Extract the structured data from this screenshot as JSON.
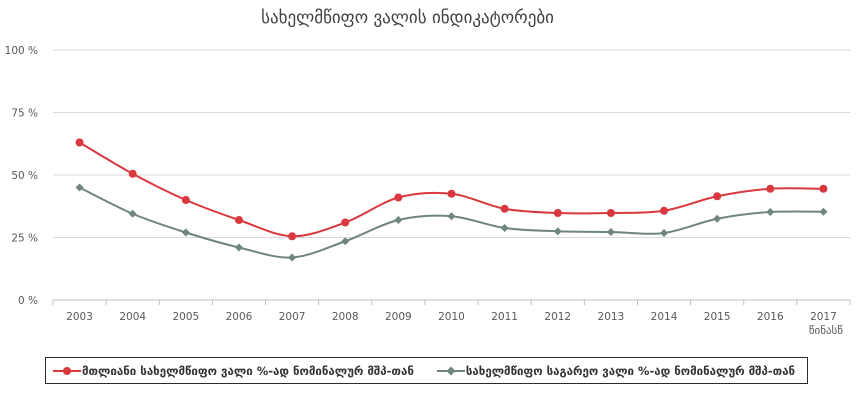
{
  "chart_data": {
    "type": "line",
    "title": "სახელმწიფო ვალის ინდიკატორები",
    "xlabel": "წინასწ",
    "ylabel": "",
    "categories": [
      "2003",
      "2004",
      "2005",
      "2006",
      "2007",
      "2008",
      "2009",
      "2010",
      "2011",
      "2012",
      "2013",
      "2014",
      "2015",
      "2016",
      "2017"
    ],
    "ylim": [
      0,
      100
    ],
    "yticks": [
      0,
      25,
      50,
      75,
      100
    ],
    "ytick_labels": [
      "0 %",
      "25 %",
      "50 %",
      "75 %",
      "100 %"
    ],
    "grid": true,
    "legend_position": "bottom",
    "series": [
      {
        "name": "მთლიანი სახელმწიფო ვალი %-ად ნომინალურ მშპ-თან",
        "color": "#d9383e",
        "marker": "circle",
        "values": [
          63,
          50.5,
          40,
          32,
          25.5,
          31,
          41,
          42.5,
          36.5,
          34.8,
          34.8,
          35.7,
          41.5,
          44.5,
          44.5
        ]
      },
      {
        "name": "სახელმწიფო საგარეო ვალი %-ად ნომინალურ მშპ-თან",
        "color": "#6f8580",
        "marker": "diamond",
        "values": [
          45,
          34.5,
          27,
          21,
          17,
          23.5,
          32,
          33.5,
          28.8,
          27.5,
          27.2,
          26.8,
          32.5,
          35.2,
          35.3
        ]
      }
    ]
  }
}
